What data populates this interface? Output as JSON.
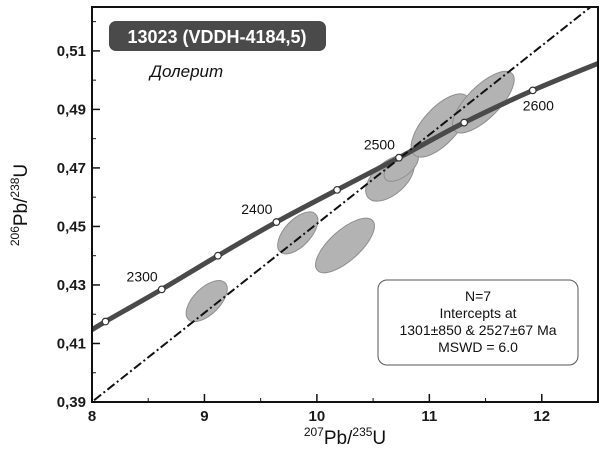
{
  "chart_data": {
    "type": "concordia",
    "title": "13023 (VDDH-4184,5)",
    "subtitle": "Долерит",
    "xlabel": {
      "sup1": "207",
      "base1": "Pb/",
      "sup2": "235",
      "base2": "U"
    },
    "ylabel": {
      "sup1": "206",
      "base1": "Pb/",
      "sup2": "238",
      "base2": "U"
    },
    "xlim": [
      8,
      12.5
    ],
    "ylim": [
      0.39,
      0.525
    ],
    "x_ticks": [
      {
        "value": 8,
        "label": "8"
      },
      {
        "value": 9,
        "label": "9"
      },
      {
        "value": 10,
        "label": "10"
      },
      {
        "value": 11,
        "label": "11"
      },
      {
        "value": 12,
        "label": "12"
      }
    ],
    "y_ticks": [
      {
        "value": 0.39,
        "label": "0,39"
      },
      {
        "value": 0.41,
        "label": "0,41"
      },
      {
        "value": 0.43,
        "label": "0,43"
      },
      {
        "value": 0.45,
        "label": "0,45"
      },
      {
        "value": 0.47,
        "label": "0,47"
      },
      {
        "value": 0.49,
        "label": "0,49"
      },
      {
        "value": 0.51,
        "label": "0,51"
      }
    ],
    "concordia_points": [
      {
        "age": 2250,
        "x": 8.12,
        "y": 0.4175
      },
      {
        "age": 2300,
        "x": 8.62,
        "y": 0.4285,
        "label": "2300"
      },
      {
        "age": 2350,
        "x": 9.12,
        "y": 0.44
      },
      {
        "age": 2400,
        "x": 9.64,
        "y": 0.4515,
        "label": "2400"
      },
      {
        "age": 2450,
        "x": 10.18,
        "y": 0.4625
      },
      {
        "age": 2500,
        "x": 10.73,
        "y": 0.4735,
        "label": "2500"
      },
      {
        "age": 2550,
        "x": 11.31,
        "y": 0.4855
      },
      {
        "age": 2600,
        "x": 11.92,
        "y": 0.4965,
        "label": "2600"
      }
    ],
    "concordia_range": {
      "x_start": 7.95,
      "y_start": 0.4135,
      "x_end": 12.55,
      "y_end": 0.5065
    },
    "discordia": {
      "x1": 7.9,
      "y1": 0.387,
      "x2": 12.5,
      "y2": 0.527
    },
    "ellipses": [
      {
        "cx": 9.02,
        "cy": 0.4245,
        "rx": 0.23,
        "ry": 0.0045,
        "angle_deg": -45
      },
      {
        "cx": 9.83,
        "cy": 0.4478,
        "rx": 0.23,
        "ry": 0.0045,
        "angle_deg": -47
      },
      {
        "cx": 10.25,
        "cy": 0.4435,
        "rx": 0.33,
        "ry": 0.0052,
        "angle_deg": -42
      },
      {
        "cx": 10.65,
        "cy": 0.4665,
        "rx": 0.26,
        "ry": 0.0055,
        "angle_deg": -42
      },
      {
        "cx": 10.75,
        "cy": 0.4705,
        "rx": 0.18,
        "ry": 0.0035,
        "angle_deg": -38
      },
      {
        "cx": 11.1,
        "cy": 0.4845,
        "rx": 0.35,
        "ry": 0.006,
        "angle_deg": -48
      },
      {
        "cx": 11.48,
        "cy": 0.4925,
        "rx": 0.36,
        "ry": 0.0055,
        "angle_deg": -45
      }
    ],
    "info_box": {
      "lines": [
        "N=7",
        "Intercepts at",
        "1301±850 & 2527±67 Ma",
        "MSWD = 6.0"
      ]
    },
    "colors": {
      "concordia": "#4a4a4a",
      "discordia": "#111111",
      "ellipse_fill": "#b3b3b3",
      "ellipse_stroke": "#8f8f8f",
      "title_bg": "#4a4a4a",
      "title_text": "#ffffff",
      "frame": "#111111"
    }
  }
}
